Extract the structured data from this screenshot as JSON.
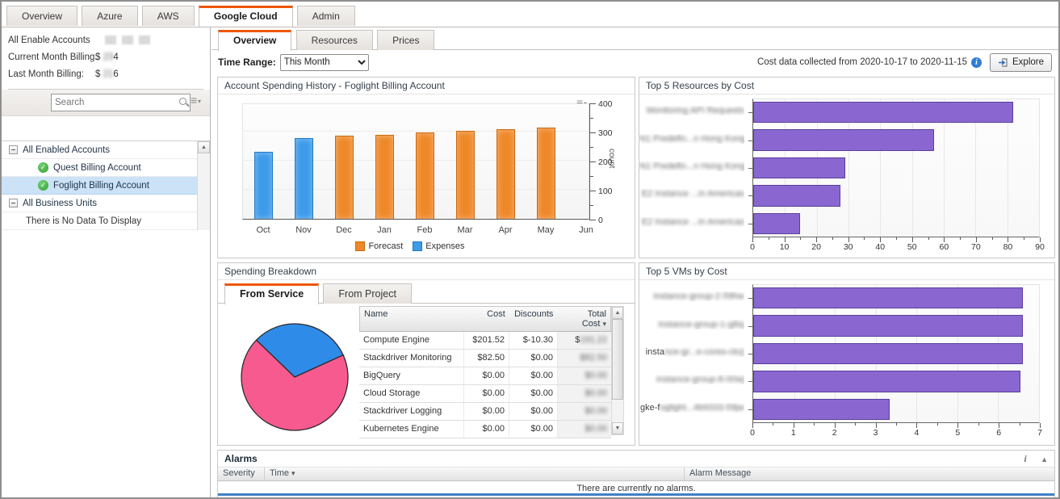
{
  "top_tabs": [
    {
      "label": "Overview"
    },
    {
      "label": "Azure"
    },
    {
      "label": "AWS"
    },
    {
      "label": "Google Cloud"
    },
    {
      "label": "Admin"
    }
  ],
  "left_panel": {
    "all_accounts_label": "All Enable Accounts",
    "current_month_label": "Current Month Billing:",
    "current_month_prefix": "$ ",
    "current_month_redacted": "23",
    "current_month_suffix": "4",
    "last_month_label": "Last Month Billing:",
    "last_month_prefix": "$ ",
    "last_month_redacted": "21",
    "last_month_suffix": "6",
    "search_placeholder": "Search",
    "tree": {
      "group1": "All Enabled Accounts",
      "account1": "Quest Billing Account",
      "account2": "Foglight Billing Account",
      "group2": "All Business Units",
      "empty": "There is No Data To Display"
    }
  },
  "sub_tabs": [
    {
      "label": "Overview"
    },
    {
      "label": "Resources"
    },
    {
      "label": "Prices"
    }
  ],
  "toolbar": {
    "time_range_label": "Time Range:",
    "time_range_value": "This Month",
    "cost_note": "Cost data collected from 2020-10-17 to 2020-11-15",
    "explore_label": "Explore"
  },
  "breakdown": {
    "panel_title": "Spending Breakdown",
    "tabs": [
      {
        "label": "From Service"
      },
      {
        "label": "From Project"
      }
    ],
    "table": {
      "columns": [
        "Name",
        "Cost",
        "Discounts",
        "Total Cost"
      ],
      "rows": [
        {
          "name": "Compute Engine",
          "cost": "$201.52",
          "discounts": "$-10.30",
          "total_clear": "$",
          "total_redacted": "191.22"
        },
        {
          "name": "Stackdriver Monitoring",
          "cost": "$82.50",
          "discounts": "$0.00",
          "total_clear": "",
          "total_redacted": "$82.50"
        },
        {
          "name": "BigQuery",
          "cost": "$0.00",
          "discounts": "$0.00",
          "total_clear": "",
          "total_redacted": "$0.00"
        },
        {
          "name": "Cloud Storage",
          "cost": "$0.00",
          "discounts": "$0.00",
          "total_clear": "",
          "total_redacted": "$0.00"
        },
        {
          "name": "Stackdriver Logging",
          "cost": "$0.00",
          "discounts": "$0.00",
          "total_clear": "",
          "total_redacted": "$0.00"
        },
        {
          "name": "Kubernetes Engine",
          "cost": "$0.00",
          "discounts": "$0.00",
          "total_clear": "",
          "total_redacted": "$0.00"
        }
      ]
    }
  },
  "alarms": {
    "title": "Alarms",
    "columns": [
      "Severity",
      "Time",
      "Alarm Message"
    ],
    "empty_message": "There are currently no alarms."
  },
  "chart_data": [
    {
      "id": "spending_history",
      "type": "bar",
      "panel_title": "Account Spending History - Foglight Billing Account",
      "categories": [
        "Oct",
        "Nov",
        "Dec",
        "Jan",
        "Feb",
        "Mar",
        "Apr",
        "May",
        "Jun"
      ],
      "series": [
        {
          "name": "Forecast",
          "color": "#ef8829",
          "border": "#c9690f",
          "values": [
            null,
            null,
            285,
            290,
            297,
            303,
            308,
            315,
            null
          ]
        },
        {
          "name": "Expenses",
          "color": "#3d9be9",
          "border": "#1f78c8",
          "values": [
            230,
            277,
            null,
            null,
            null,
            null,
            null,
            null,
            null
          ]
        }
      ],
      "ylabel": "count",
      "ylim": [
        0,
        400
      ],
      "yticks": [
        0,
        100,
        200,
        300,
        400
      ],
      "minor_step": 50,
      "legend_position": "bottom"
    },
    {
      "id": "top_resources",
      "type": "hbar",
      "panel_title": "Top 5 Resources by Cost",
      "bar_color": "#8a67d0",
      "bar_border": "#5b3e9e",
      "xlim": [
        0,
        90
      ],
      "xticks": [
        0,
        10,
        20,
        30,
        40,
        50,
        60,
        70,
        80,
        90
      ],
      "minor_step": 5,
      "bars": [
        {
          "label_clear": "",
          "label_redacted": "Monitoring API Requests",
          "value": 81.8
        },
        {
          "label_clear": "",
          "label_redacted": "N1 Predefin...n Hong Kong",
          "value": 57
        },
        {
          "label_clear": "",
          "label_redacted": "N1 Predefin...n Hong Kong",
          "value": 29
        },
        {
          "label_clear": "",
          "label_redacted": "E2 Instance ...in Americas",
          "value": 27.4
        },
        {
          "label_clear": "",
          "label_redacted": "E2 Instance ...in Americas",
          "value": 14.8
        }
      ]
    },
    {
      "id": "breakdown_pie",
      "type": "pie",
      "start_deg": 136,
      "slices": [
        {
          "label": "Stackdriver Monitoring",
          "color": "#2f8be8",
          "fraction": 0.31
        },
        {
          "label": "Compute Engine",
          "color": "#f75a8e",
          "fraction": 0.69
        }
      ]
    },
    {
      "id": "top_vms",
      "type": "hbar",
      "panel_title": "Top 5 VMs by Cost",
      "bar_color": "#8a67d0",
      "bar_border": "#5b3e9e",
      "xlim": [
        0,
        7
      ],
      "xticks": [
        0,
        1,
        2,
        3,
        4,
        5,
        6,
        7
      ],
      "minor_step": 0.5,
      "bars": [
        {
          "label_clear": "",
          "label_redacted": "instance-group-2-59hw",
          "value": 6.6
        },
        {
          "label_clear": "",
          "label_redacted": "instance-group-1-g8sj",
          "value": 6.6
        },
        {
          "label_clear": "insta",
          "label_redacted": "nce-gr...e-cores-ckzj",
          "value": 6.6
        },
        {
          "label_clear": "",
          "label_redacted": "instance-group-8-00wj",
          "value": 6.55
        },
        {
          "label_clear": "gke-f",
          "label_redacted": "oglight...4b9333-59jw",
          "value": 3.35
        }
      ]
    }
  ]
}
